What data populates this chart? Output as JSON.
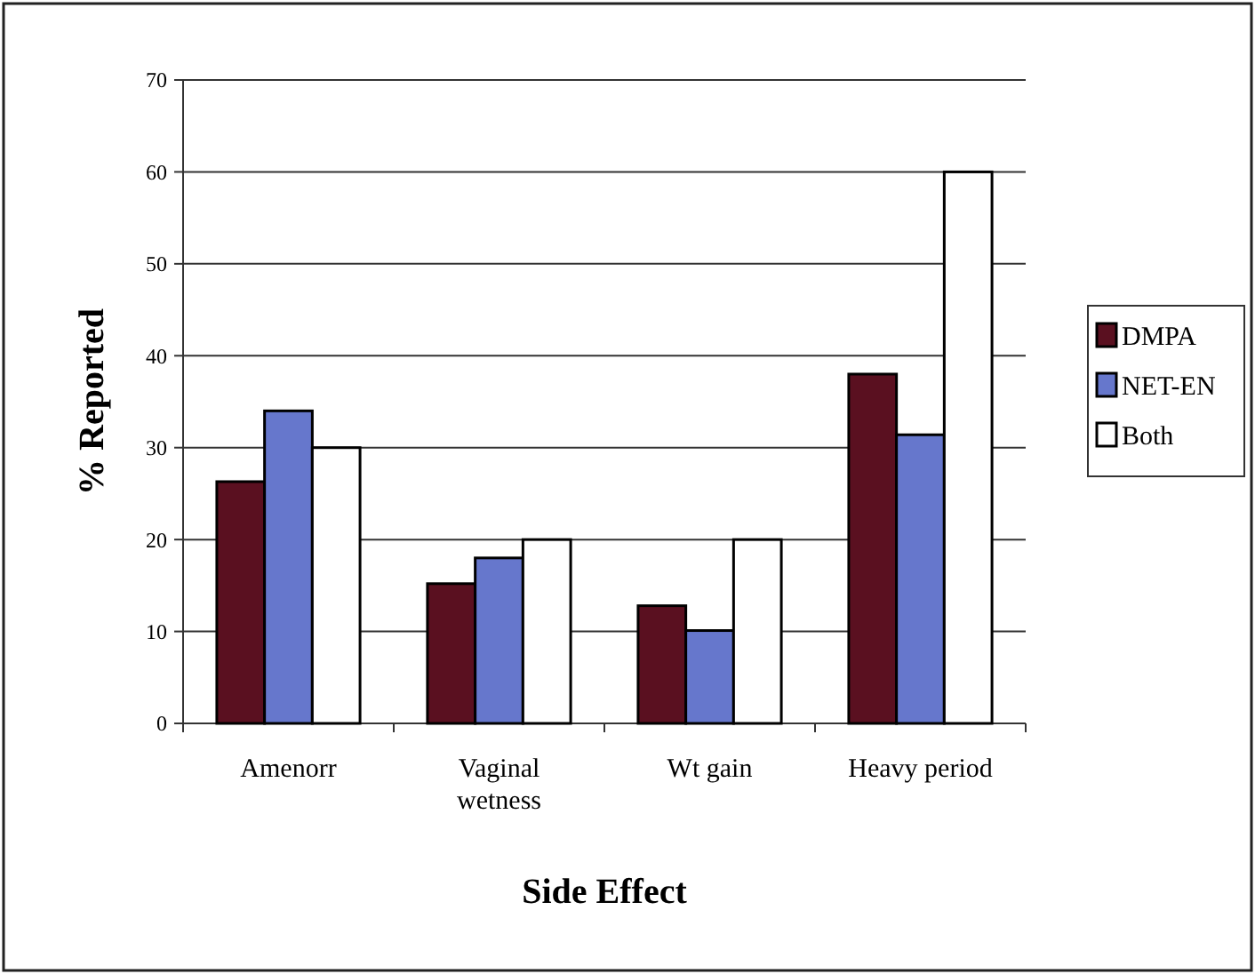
{
  "chart_data": {
    "type": "bar",
    "xlabel": "Side Effect",
    "ylabel": "% Reported",
    "categories": [
      "Amenorr",
      "Vaginal\nwetness",
      "Wt gain",
      "Heavy period"
    ],
    "series": [
      {
        "name": "DMPA",
        "color": "#5a1020",
        "values": [
          26.3,
          15.2,
          12.8,
          38
        ]
      },
      {
        "name": "NET-EN",
        "color": "#6677cc",
        "values": [
          34,
          18,
          10.1,
          31.4
        ]
      },
      {
        "name": "Both",
        "color": "#ffffff",
        "values": [
          30,
          20,
          20,
          60
        ]
      }
    ],
    "ylim": [
      0,
      70
    ],
    "yticks": [
      0,
      10,
      20,
      30,
      40,
      50,
      60,
      70
    ],
    "grid": "y",
    "legend": "right"
  }
}
